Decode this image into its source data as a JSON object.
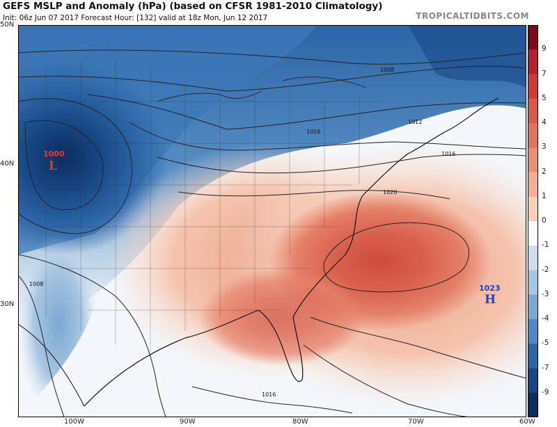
{
  "header": {
    "title": "GEFS MSLP and Anomaly (hPa) (based on CFSR 1981-2010 Climatology)",
    "subtitle": "Init: 06z Jun 07 2017   Forecast Hour: [132]   valid at 18z Mon, Jun 12 2017",
    "brand": "TROPICALTIDBITS.COM"
  },
  "map": {
    "latitude_labels": [
      "50N",
      "40N",
      "30N"
    ],
    "longitude_labels": [
      "100W",
      "90W",
      "80W",
      "70W",
      "60W"
    ],
    "isobar_labels": [
      "1008",
      "1012",
      "1016",
      "1016",
      "1020",
      "1008",
      "1016"
    ],
    "low_center": {
      "pressure": "1000",
      "symbol": "L",
      "color": "#e53935"
    },
    "high_center": {
      "pressure": "1023",
      "symbol": "H",
      "color": "#1e40c8"
    }
  },
  "colorbar": {
    "labels": [
      "9",
      "7",
      "5",
      "4",
      "3",
      "2",
      "1",
      "0",
      "-1",
      "-2",
      "-3",
      "-4",
      "-5",
      "-7",
      "-9"
    ],
    "colors": [
      "#7a0a1a",
      "#b0222c",
      "#cc3d36",
      "#d8584a",
      "#e2735f",
      "#eb9078",
      "#f2ae96",
      "#f8cfbd",
      "#ffffff",
      "#cfdeef",
      "#a8c6e2",
      "#7ba8d2",
      "#4f88c0",
      "#2c65a6",
      "#174684",
      "#0c2d5e"
    ]
  }
}
